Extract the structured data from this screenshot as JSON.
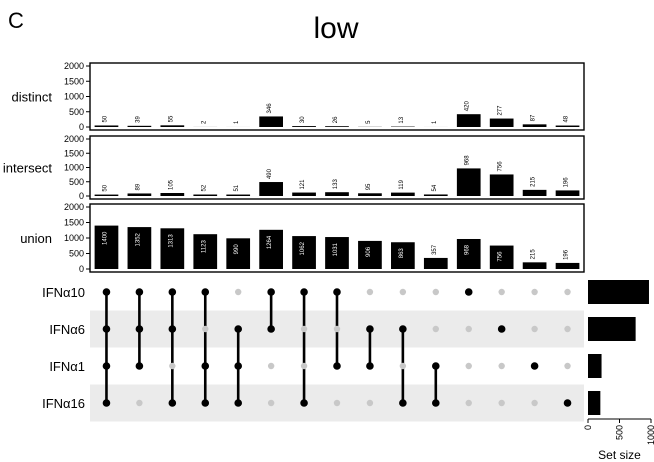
{
  "panel_label": "C",
  "title": "low",
  "chart_data": {
    "type": "bar",
    "title": "low",
    "columns": 15,
    "sections": [
      {
        "name": "distinct",
        "label": "distinct",
        "ylim": [
          0,
          2000
        ],
        "yticks": [
          0,
          500,
          1000,
          1500,
          2000
        ],
        "values": [
          50,
          39,
          55,
          2,
          1,
          346,
          30,
          26,
          5,
          13,
          1,
          420,
          277,
          87,
          48
        ]
      },
      {
        "name": "intersect",
        "label": "intersect",
        "ylim": [
          0,
          2000
        ],
        "yticks": [
          0,
          500,
          1000,
          1500,
          2000
        ],
        "values": [
          50,
          89,
          105,
          52,
          51,
          490,
          121,
          133,
          95,
          119,
          54,
          968,
          756,
          215,
          196
        ]
      },
      {
        "name": "union",
        "label": "union",
        "ylim": [
          0,
          2000
        ],
        "yticks": [
          0,
          500,
          1000,
          1500,
          2000
        ],
        "values": [
          1400,
          1352,
          1313,
          1123,
          990,
          1264,
          1062,
          1031,
          906,
          863,
          357,
          968,
          756,
          215,
          196
        ]
      }
    ],
    "sets": [
      "IFNα10",
      "IFNα6",
      "IFNα1",
      "IFNα16"
    ],
    "membership": [
      [
        1,
        1,
        1,
        1
      ],
      [
        1,
        1,
        1,
        0
      ],
      [
        1,
        1,
        0,
        1
      ],
      [
        1,
        0,
        1,
        1
      ],
      [
        0,
        1,
        1,
        1
      ],
      [
        1,
        1,
        0,
        0
      ],
      [
        1,
        0,
        0,
        1
      ],
      [
        1,
        0,
        1,
        0
      ],
      [
        0,
        1,
        1,
        0
      ],
      [
        0,
        1,
        0,
        1
      ],
      [
        0,
        0,
        1,
        1
      ],
      [
        1,
        0,
        0,
        0
      ],
      [
        0,
        1,
        0,
        0
      ],
      [
        0,
        0,
        1,
        0
      ],
      [
        0,
        0,
        0,
        1
      ]
    ],
    "set_sizes": [
      968,
      756,
      215,
      196
    ],
    "set_size_axis": {
      "label": "Set size",
      "ticks": [
        0,
        500,
        1000
      ],
      "xlim": [
        0,
        1000
      ]
    },
    "colors": {
      "bar": "#000000",
      "dot_active": "#000000",
      "dot_inactive": "#c8c8c8",
      "stripe": "#ebebeb"
    }
  }
}
